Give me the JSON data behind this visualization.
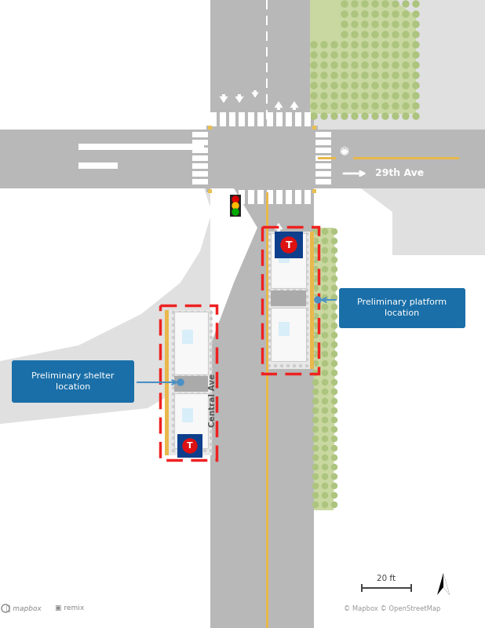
{
  "bg_light": "#eeeeee",
  "bg_white": "#f5f5f5",
  "road_gray": "#b8b8b8",
  "road_medium": "#c8c8c8",
  "sidewalk_light": "#e0e0e0",
  "sidewalk_white": "#f0f0f0",
  "white": "#ffffff",
  "crosswalk_white": "#ffffff",
  "green_area": "#c8d8a0",
  "green_dot": "#adc47e",
  "yellow_line": "#e8b84b",
  "dashed_red": "#ee2222",
  "bus_white": "#f8f8f8",
  "bus_gray": "#aaaaaa",
  "annotation_blue": "#1a6fa8",
  "traffic_box": "#222222",
  "scale_color": "#444444",
  "text_gray": "#666666",
  "road_dark": "#aaaaaa",
  "curb_yellow": "#e8c050",
  "title_29th": "29th Ave",
  "title_central": "Central Ave",
  "label_shelter": "Preliminary shelter\nlocation",
  "label_platform": "Preliminary platform\nlocation",
  "scale_text": "20 ft",
  "copyright_text": "© Mapbox © OpenStreetMap"
}
